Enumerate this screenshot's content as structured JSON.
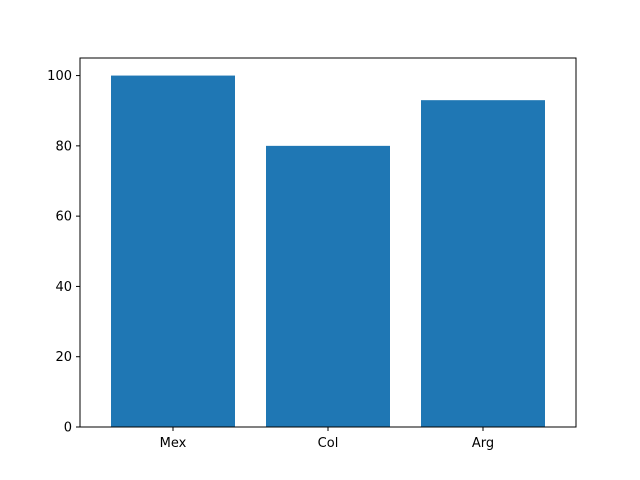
{
  "chart_data": {
    "type": "bar",
    "categories": [
      "Mex",
      "Col",
      "Arg"
    ],
    "values": [
      100,
      80,
      93
    ],
    "title": "",
    "xlabel": "",
    "ylabel": "",
    "ylim": [
      0,
      105
    ],
    "yticks": [
      0,
      20,
      40,
      60,
      80,
      100
    ],
    "grid": false,
    "legend": "none",
    "bar_color": "#1f77b4"
  }
}
